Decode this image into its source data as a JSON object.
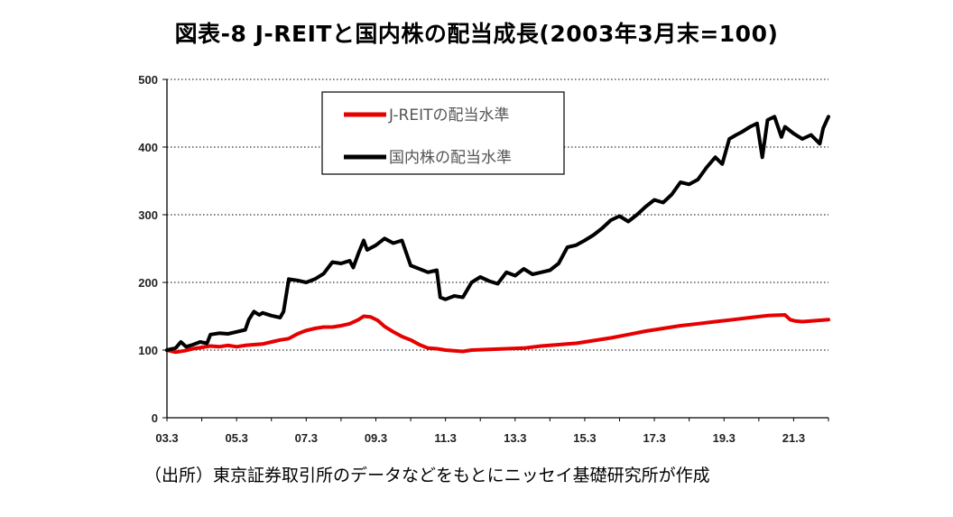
{
  "title": "図表-8 J-REITと国内株の配当成長(2003年3月末=100)",
  "source_note": "（出所）東京証券取引所のデータなどをもとにニッセイ基礎研究所が作成",
  "chart_data": {
    "type": "line",
    "title": "図表-8 J-REITと国内株の配当成長(2003年3月末=100)",
    "xlabel": "",
    "ylabel": "",
    "x_tick_labels": [
      "03.3",
      "05.3",
      "07.3",
      "09.3",
      "11.3",
      "13.3",
      "15.3",
      "17.3",
      "19.3",
      "21.3"
    ],
    "x_tick_values": [
      2003.25,
      2005.25,
      2007.25,
      2009.25,
      2011.25,
      2013.25,
      2015.25,
      2017.25,
      2019.25,
      2021.25
    ],
    "xlim": [
      2003.25,
      2022.25
    ],
    "ylim": [
      0,
      500
    ],
    "y_ticks": [
      0,
      100,
      200,
      300,
      400,
      500
    ],
    "grid": "horizontal dotted",
    "legend_position": "top-center",
    "series": [
      {
        "name": "J-REITの配当水準",
        "color": "#e60000",
        "points": [
          [
            2003.25,
            100
          ],
          [
            2003.5,
            97
          ],
          [
            2003.75,
            99
          ],
          [
            2004.0,
            102
          ],
          [
            2004.25,
            104
          ],
          [
            2004.5,
            106
          ],
          [
            2004.75,
            105
          ],
          [
            2005.0,
            107
          ],
          [
            2005.25,
            105
          ],
          [
            2005.5,
            107
          ],
          [
            2005.75,
            108
          ],
          [
            2006.0,
            109
          ],
          [
            2006.25,
            112
          ],
          [
            2006.5,
            115
          ],
          [
            2006.75,
            117
          ],
          [
            2007.0,
            124
          ],
          [
            2007.25,
            129
          ],
          [
            2007.5,
            132
          ],
          [
            2007.75,
            134
          ],
          [
            2008.0,
            134
          ],
          [
            2008.25,
            136
          ],
          [
            2008.5,
            139
          ],
          [
            2008.75,
            145
          ],
          [
            2008.9,
            150
          ],
          [
            2009.1,
            149
          ],
          [
            2009.3,
            144
          ],
          [
            2009.5,
            135
          ],
          [
            2009.75,
            127
          ],
          [
            2010.0,
            120
          ],
          [
            2010.25,
            115
          ],
          [
            2010.5,
            108
          ],
          [
            2010.75,
            103
          ],
          [
            2011.0,
            102
          ],
          [
            2011.25,
            100
          ],
          [
            2011.5,
            99
          ],
          [
            2011.75,
            98
          ],
          [
            2012.0,
            100
          ],
          [
            2012.5,
            101
          ],
          [
            2013.0,
            102
          ],
          [
            2013.5,
            103
          ],
          [
            2014.0,
            106
          ],
          [
            2014.5,
            108
          ],
          [
            2015.0,
            110
          ],
          [
            2015.5,
            114
          ],
          [
            2016.0,
            118
          ],
          [
            2016.5,
            123
          ],
          [
            2017.0,
            128
          ],
          [
            2017.5,
            132
          ],
          [
            2018.0,
            136
          ],
          [
            2018.5,
            139
          ],
          [
            2019.0,
            142
          ],
          [
            2019.5,
            145
          ],
          [
            2020.0,
            148
          ],
          [
            2020.5,
            151
          ],
          [
            2021.0,
            152
          ],
          [
            2021.15,
            145
          ],
          [
            2021.3,
            143
          ],
          [
            2021.5,
            142
          ],
          [
            2021.75,
            143
          ],
          [
            2022.0,
            144
          ],
          [
            2022.25,
            145
          ]
        ]
      },
      {
        "name": "国内株の配当水準",
        "color": "#000000",
        "points": [
          [
            2003.25,
            100
          ],
          [
            2003.5,
            103
          ],
          [
            2003.65,
            112
          ],
          [
            2003.8,
            105
          ],
          [
            2004.0,
            108
          ],
          [
            2004.2,
            112
          ],
          [
            2004.4,
            110
          ],
          [
            2004.5,
            123
          ],
          [
            2004.75,
            125
          ],
          [
            2005.0,
            124
          ],
          [
            2005.25,
            127
          ],
          [
            2005.5,
            130
          ],
          [
            2005.6,
            145
          ],
          [
            2005.75,
            157
          ],
          [
            2005.9,
            152
          ],
          [
            2006.0,
            155
          ],
          [
            2006.25,
            151
          ],
          [
            2006.5,
            148
          ],
          [
            2006.6,
            157
          ],
          [
            2006.75,
            205
          ],
          [
            2007.0,
            203
          ],
          [
            2007.25,
            200
          ],
          [
            2007.5,
            205
          ],
          [
            2007.75,
            213
          ],
          [
            2008.0,
            230
          ],
          [
            2008.25,
            228
          ],
          [
            2008.5,
            232
          ],
          [
            2008.6,
            222
          ],
          [
            2008.75,
            243
          ],
          [
            2008.9,
            262
          ],
          [
            2009.0,
            248
          ],
          [
            2009.25,
            255
          ],
          [
            2009.5,
            265
          ],
          [
            2009.75,
            258
          ],
          [
            2010.0,
            262
          ],
          [
            2010.25,
            225
          ],
          [
            2010.5,
            220
          ],
          [
            2010.75,
            215
          ],
          [
            2011.0,
            218
          ],
          [
            2011.1,
            178
          ],
          [
            2011.25,
            175
          ],
          [
            2011.5,
            180
          ],
          [
            2011.75,
            178
          ],
          [
            2012.0,
            200
          ],
          [
            2012.25,
            208
          ],
          [
            2012.5,
            202
          ],
          [
            2012.75,
            198
          ],
          [
            2013.0,
            215
          ],
          [
            2013.25,
            210
          ],
          [
            2013.5,
            220
          ],
          [
            2013.75,
            212
          ],
          [
            2014.0,
            215
          ],
          [
            2014.25,
            218
          ],
          [
            2014.5,
            228
          ],
          [
            2014.75,
            252
          ],
          [
            2015.0,
            255
          ],
          [
            2015.25,
            262
          ],
          [
            2015.5,
            270
          ],
          [
            2015.75,
            280
          ],
          [
            2016.0,
            292
          ],
          [
            2016.25,
            298
          ],
          [
            2016.5,
            290
          ],
          [
            2016.75,
            300
          ],
          [
            2017.0,
            312
          ],
          [
            2017.25,
            322
          ],
          [
            2017.5,
            318
          ],
          [
            2017.75,
            330
          ],
          [
            2018.0,
            348
          ],
          [
            2018.25,
            345
          ],
          [
            2018.5,
            352
          ],
          [
            2018.75,
            370
          ],
          [
            2019.0,
            385
          ],
          [
            2019.2,
            375
          ],
          [
            2019.4,
            412
          ],
          [
            2019.6,
            418
          ],
          [
            2019.75,
            422
          ],
          [
            2020.0,
            430
          ],
          [
            2020.2,
            435
          ],
          [
            2020.35,
            385
          ],
          [
            2020.5,
            440
          ],
          [
            2020.7,
            445
          ],
          [
            2020.9,
            415
          ],
          [
            2021.0,
            430
          ],
          [
            2021.25,
            420
          ],
          [
            2021.5,
            412
          ],
          [
            2021.75,
            418
          ],
          [
            2022.0,
            405
          ],
          [
            2022.1,
            428
          ],
          [
            2022.25,
            445
          ]
        ]
      }
    ]
  }
}
